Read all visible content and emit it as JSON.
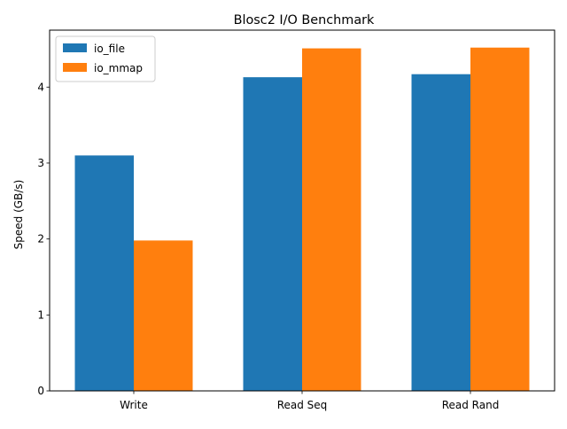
{
  "chart_data": {
    "type": "bar",
    "title": "Blosc2 I/O Benchmark",
    "xlabel": "",
    "ylabel": "Speed (GB/s)",
    "categories": [
      "Write",
      "Read Seq",
      "Read Rand"
    ],
    "series": [
      {
        "name": "io_file",
        "values": [
          3.1,
          4.13,
          4.17
        ],
        "color": "#1f77b4"
      },
      {
        "name": "io_mmap",
        "values": [
          1.98,
          4.51,
          4.52
        ],
        "color": "#ff7f0e"
      }
    ],
    "ylim": [
      0,
      4.75
    ],
    "yticks": [
      0,
      1,
      2,
      3,
      4
    ],
    "grid": false,
    "legend_position": "upper-left"
  }
}
